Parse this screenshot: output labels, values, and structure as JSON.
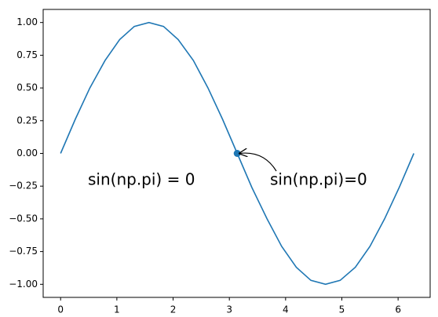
{
  "chart_data": {
    "type": "line",
    "x": [
      0,
      0.26,
      0.52,
      0.79,
      1.05,
      1.31,
      1.57,
      1.83,
      2.09,
      2.36,
      2.62,
      2.88,
      3.14,
      3.4,
      3.67,
      3.93,
      4.19,
      4.45,
      4.71,
      4.97,
      5.24,
      5.5,
      5.76,
      6.02,
      6.28
    ],
    "series": [
      {
        "color": "#1f77b4",
        "values": [
          0,
          0.26,
          0.5,
          0.71,
          0.87,
          0.97,
          1,
          0.97,
          0.87,
          0.71,
          0.5,
          0.26,
          0,
          -0.26,
          -0.5,
          -0.71,
          -0.87,
          -0.97,
          -1,
          -0.97,
          -0.87,
          -0.71,
          -0.5,
          -0.26,
          0
        ]
      }
    ],
    "points": {
      "x": [
        3.14
      ],
      "y": [
        0
      ],
      "color": "#1f77b4"
    },
    "annotations": [
      {
        "text": "sin(np.pi) = 0",
        "color": "#ff0000"
      },
      {
        "text": "sin(np.pi)=0",
        "color": "#000000"
      }
    ],
    "xlim": [
      -0.31,
      6.57
    ],
    "ylim": [
      -1.1,
      1.1
    ],
    "xticks": [
      0,
      1,
      2,
      3,
      4,
      5,
      6
    ],
    "yticks": [
      {
        "value": 1,
        "label": "1.00"
      },
      {
        "value": 0.75,
        "label": "0.75"
      },
      {
        "value": 0.5,
        "label": "0.50"
      },
      {
        "value": 0.25,
        "label": "0.25"
      },
      {
        "value": 0,
        "label": "0.00"
      },
      {
        "value": -0.25,
        "label": "−0.25"
      },
      {
        "value": -0.5,
        "label": "−0.50"
      },
      {
        "value": -0.75,
        "label": "−0.75"
      },
      {
        "value": -1,
        "label": "−1.00"
      }
    ]
  }
}
